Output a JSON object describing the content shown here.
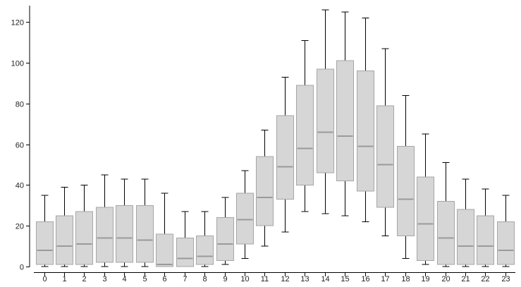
{
  "chart_data": {
    "type": "box",
    "title": "",
    "xlabel": "",
    "ylabel": "",
    "ylim": [
      0,
      126
    ],
    "yticks": [
      0,
      20,
      40,
      60,
      80,
      100,
      120
    ],
    "legend": "none",
    "grid": false,
    "colors": {
      "box_fill": "#d6d6d6",
      "box_stroke": "#a6a6a6",
      "median": "#9a9a9a",
      "whisker": "#000000"
    },
    "categories": [
      "0",
      "1",
      "2",
      "3",
      "4",
      "5",
      "6",
      "7",
      "8",
      "9",
      "10",
      "11",
      "12",
      "13",
      "14",
      "15",
      "16",
      "17",
      "18",
      "19",
      "20",
      "21",
      "22",
      "23"
    ],
    "boxes": [
      {
        "min": 0,
        "q1": 1,
        "median": 8,
        "q3": 22,
        "max": 35
      },
      {
        "min": 0,
        "q1": 1,
        "median": 10,
        "q3": 25,
        "max": 39
      },
      {
        "min": 0,
        "q1": 1,
        "median": 11,
        "q3": 27,
        "max": 40
      },
      {
        "min": 0,
        "q1": 2,
        "median": 14,
        "q3": 29,
        "max": 45
      },
      {
        "min": 0,
        "q1": 2,
        "median": 14,
        "q3": 30,
        "max": 43
      },
      {
        "min": 0,
        "q1": 2,
        "median": 13,
        "q3": 30,
        "max": 43
      },
      {
        "min": 0,
        "q1": 0,
        "median": 1,
        "q3": 16,
        "max": 36
      },
      {
        "min": 0,
        "q1": 0,
        "median": 4,
        "q3": 14,
        "max": 27
      },
      {
        "min": 0,
        "q1": 1,
        "median": 5,
        "q3": 15,
        "max": 27
      },
      {
        "min": 1,
        "q1": 3,
        "median": 11,
        "q3": 24,
        "max": 34
      },
      {
        "min": 4,
        "q1": 11,
        "median": 23,
        "q3": 36,
        "max": 47
      },
      {
        "min": 10,
        "q1": 20,
        "median": 34,
        "q3": 54,
        "max": 67
      },
      {
        "min": 17,
        "q1": 33,
        "median": 49,
        "q3": 74,
        "max": 93
      },
      {
        "min": 27,
        "q1": 40,
        "median": 58,
        "q3": 89,
        "max": 111
      },
      {
        "min": 26,
        "q1": 46,
        "median": 66,
        "q3": 97,
        "max": 126
      },
      {
        "min": 25,
        "q1": 42,
        "median": 64,
        "q3": 101,
        "max": 125
      },
      {
        "min": 22,
        "q1": 37,
        "median": 59,
        "q3": 96,
        "max": 122
      },
      {
        "min": 15,
        "q1": 29,
        "median": 50,
        "q3": 79,
        "max": 107
      },
      {
        "min": 4,
        "q1": 15,
        "median": 33,
        "q3": 59,
        "max": 84
      },
      {
        "min": 1,
        "q1": 3,
        "median": 21,
        "q3": 44,
        "max": 65
      },
      {
        "min": 0,
        "q1": 1,
        "median": 14,
        "q3": 32,
        "max": 51
      },
      {
        "min": 0,
        "q1": 1,
        "median": 10,
        "q3": 28,
        "max": 43
      },
      {
        "min": 0,
        "q1": 1,
        "median": 10,
        "q3": 25,
        "max": 38
      },
      {
        "min": 0,
        "q1": 1,
        "median": 8,
        "q3": 22,
        "max": 35
      }
    ]
  }
}
